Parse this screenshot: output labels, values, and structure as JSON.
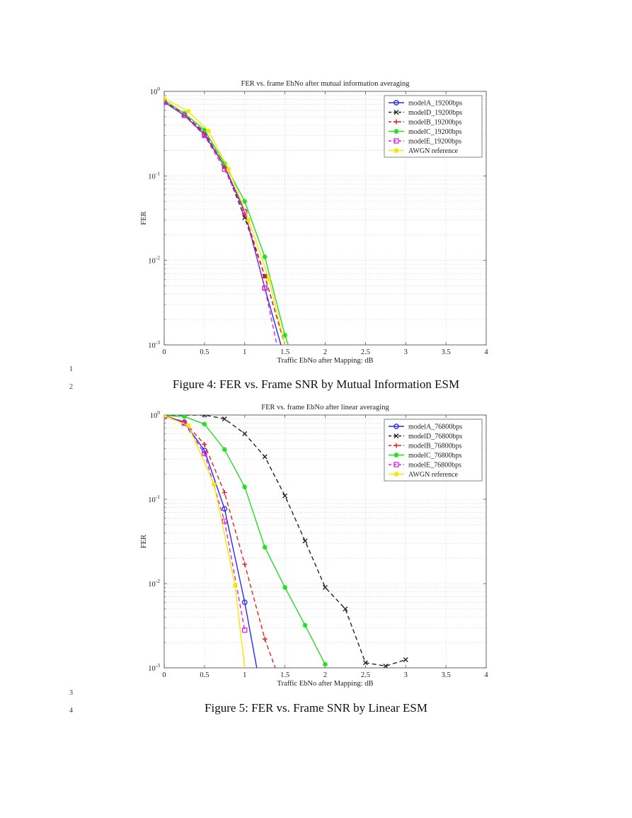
{
  "line_numbers": [
    "1",
    "2",
    "3",
    "4"
  ],
  "figures": [
    {
      "caption": "Figure 4: FER vs. Frame SNR by Mutual Information ESM",
      "chart_data": {
        "type": "line",
        "title": "FER vs. frame EbNo after mutual information averaging",
        "xlabel": "Traffic EbNo after Mapping: dB",
        "ylabel": "FER",
        "xlim": [
          0,
          4
        ],
        "ylim": [
          0.001,
          1
        ],
        "yscale": "log",
        "grid": true,
        "legend_position": "top-right",
        "x_ticks": [
          "0",
          "0.5",
          "1",
          "1.5",
          "2",
          "2.5",
          "3",
          "3.5",
          "4"
        ],
        "y_ticks": [
          {
            "base": "10",
            "exp": "0"
          },
          {
            "base": "10",
            "exp": "-1"
          },
          {
            "base": "10",
            "exp": "-2"
          },
          {
            "base": "10",
            "exp": "-3"
          }
        ],
        "series": [
          {
            "name": "modelA_19200bps",
            "color": "#2a2af0",
            "dash": "",
            "marker": "circle",
            "x": [
              0,
              0.25,
              0.5,
              0.75,
              1.0,
              1.25,
              1.45
            ],
            "y": [
              0.75,
              0.52,
              0.31,
              0.13,
              0.038,
              0.0047,
              0.001
            ]
          },
          {
            "name": "modelD_19200bps",
            "color": "#222222",
            "dash": "6,4",
            "marker": "x",
            "x": [
              0,
              0.25,
              0.5,
              0.75,
              1.0,
              1.25,
              1.5
            ],
            "y": [
              0.76,
              0.53,
              0.33,
              0.13,
              0.032,
              0.0065,
              0.001
            ]
          },
          {
            "name": "modelB_19200bps",
            "color": "#e82020",
            "dash": "6,4",
            "marker": "plus",
            "x": [
              0,
              0.25,
              0.5,
              0.75,
              1.0,
              1.25,
              1.5
            ],
            "y": [
              0.77,
              0.54,
              0.32,
              0.13,
              0.036,
              0.0065,
              0.001
            ]
          },
          {
            "name": "modelC_19200bps",
            "color": "#22dd22",
            "dash": "",
            "marker": "star",
            "x": [
              0,
              0.25,
              0.5,
              0.75,
              1.0,
              1.25,
              1.5,
              1.54
            ],
            "y": [
              0.79,
              0.55,
              0.35,
              0.14,
              0.05,
              0.011,
              0.0013,
              0.001
            ]
          },
          {
            "name": "modelE_19200bps",
            "color": "#dd22dd",
            "dash": "6,4",
            "marker": "square",
            "x": [
              0,
              0.25,
              0.5,
              0.75,
              1.0,
              1.25,
              1.4
            ],
            "y": [
              0.74,
              0.52,
              0.3,
              0.12,
              0.037,
              0.0047,
              0.001
            ]
          },
          {
            "name": "AWGN reference",
            "color": "#f5e800",
            "dash": "",
            "marker": "star",
            "x": [
              0,
              0.3,
              0.55,
              0.8,
              1.05,
              1.3,
              1.5
            ],
            "y": [
              0.83,
              0.58,
              0.34,
              0.12,
              0.03,
              0.006,
              0.001
            ]
          }
        ]
      }
    },
    {
      "caption": "Figure 5: FER vs. Frame SNR by Linear ESM",
      "chart_data": {
        "type": "line",
        "title": "FER vs. frame EbNo after linear averaging",
        "xlabel": "Traffic EbNo after Mapping: dB",
        "ylabel": "FER",
        "xlim": [
          0,
          4
        ],
        "ylim": [
          0.001,
          1
        ],
        "yscale": "log",
        "grid": true,
        "legend_position": "top-right",
        "x_ticks": [
          "0",
          "0.5",
          "1",
          "1.5",
          "2",
          "2.5",
          "3",
          "3.5",
          "4"
        ],
        "y_ticks": [
          {
            "base": "10",
            "exp": "0"
          },
          {
            "base": "10",
            "exp": "-1"
          },
          {
            "base": "10",
            "exp": "-2"
          },
          {
            "base": "10",
            "exp": "-3"
          }
        ],
        "series": [
          {
            "name": "modelA_76800bps",
            "color": "#2a2af0",
            "dash": "",
            "marker": "circle",
            "x": [
              0,
              0.25,
              0.5,
              0.75,
              1.0,
              1.15
            ],
            "y": [
              0.98,
              0.82,
              0.38,
              0.077,
              0.006,
              0.001
            ]
          },
          {
            "name": "modelD_76800bps",
            "color": "#222222",
            "dash": "6,4",
            "marker": "x",
            "x": [
              0,
              0.25,
              0.5,
              0.75,
              1.0,
              1.25,
              1.5,
              1.75,
              2.0,
              2.25,
              2.5,
              2.75,
              3.0
            ],
            "y": [
              1.0,
              1.0,
              1.0,
              0.9,
              0.6,
              0.32,
              0.11,
              0.032,
              0.009,
              0.005,
              0.00115,
              0.00105,
              0.00125
            ]
          },
          {
            "name": "modelB_76800bps",
            "color": "#e82020",
            "dash": "6,4",
            "marker": "plus",
            "x": [
              0,
              0.25,
              0.5,
              0.75,
              1.0,
              1.25,
              1.38
            ],
            "y": [
              0.98,
              0.83,
              0.45,
              0.12,
              0.017,
              0.0022,
              0.001
            ]
          },
          {
            "name": "modelC_76800bps",
            "color": "#22dd22",
            "dash": "",
            "marker": "star",
            "x": [
              0,
              0.25,
              0.5,
              0.75,
              1.0,
              1.25,
              1.5,
              1.75,
              2.0
            ],
            "y": [
              0.98,
              0.96,
              0.78,
              0.39,
              0.14,
              0.027,
              0.009,
              0.0032,
              0.0011
            ]
          },
          {
            "name": "modelE_76800bps",
            "color": "#dd22dd",
            "dash": "6,4",
            "marker": "square",
            "x": [
              0,
              0.25,
              0.5,
              0.75,
              1.0
            ],
            "y": [
              0.96,
              0.8,
              0.35,
              0.055,
              0.0028
            ]
          },
          {
            "name": "AWGN reference",
            "color": "#f5e800",
            "dash": "",
            "marker": "star",
            "x": [
              0,
              0.3,
              0.62,
              0.88,
              1.0
            ],
            "y": [
              0.98,
              0.75,
              0.15,
              0.0095,
              0.001
            ]
          }
        ]
      }
    }
  ]
}
